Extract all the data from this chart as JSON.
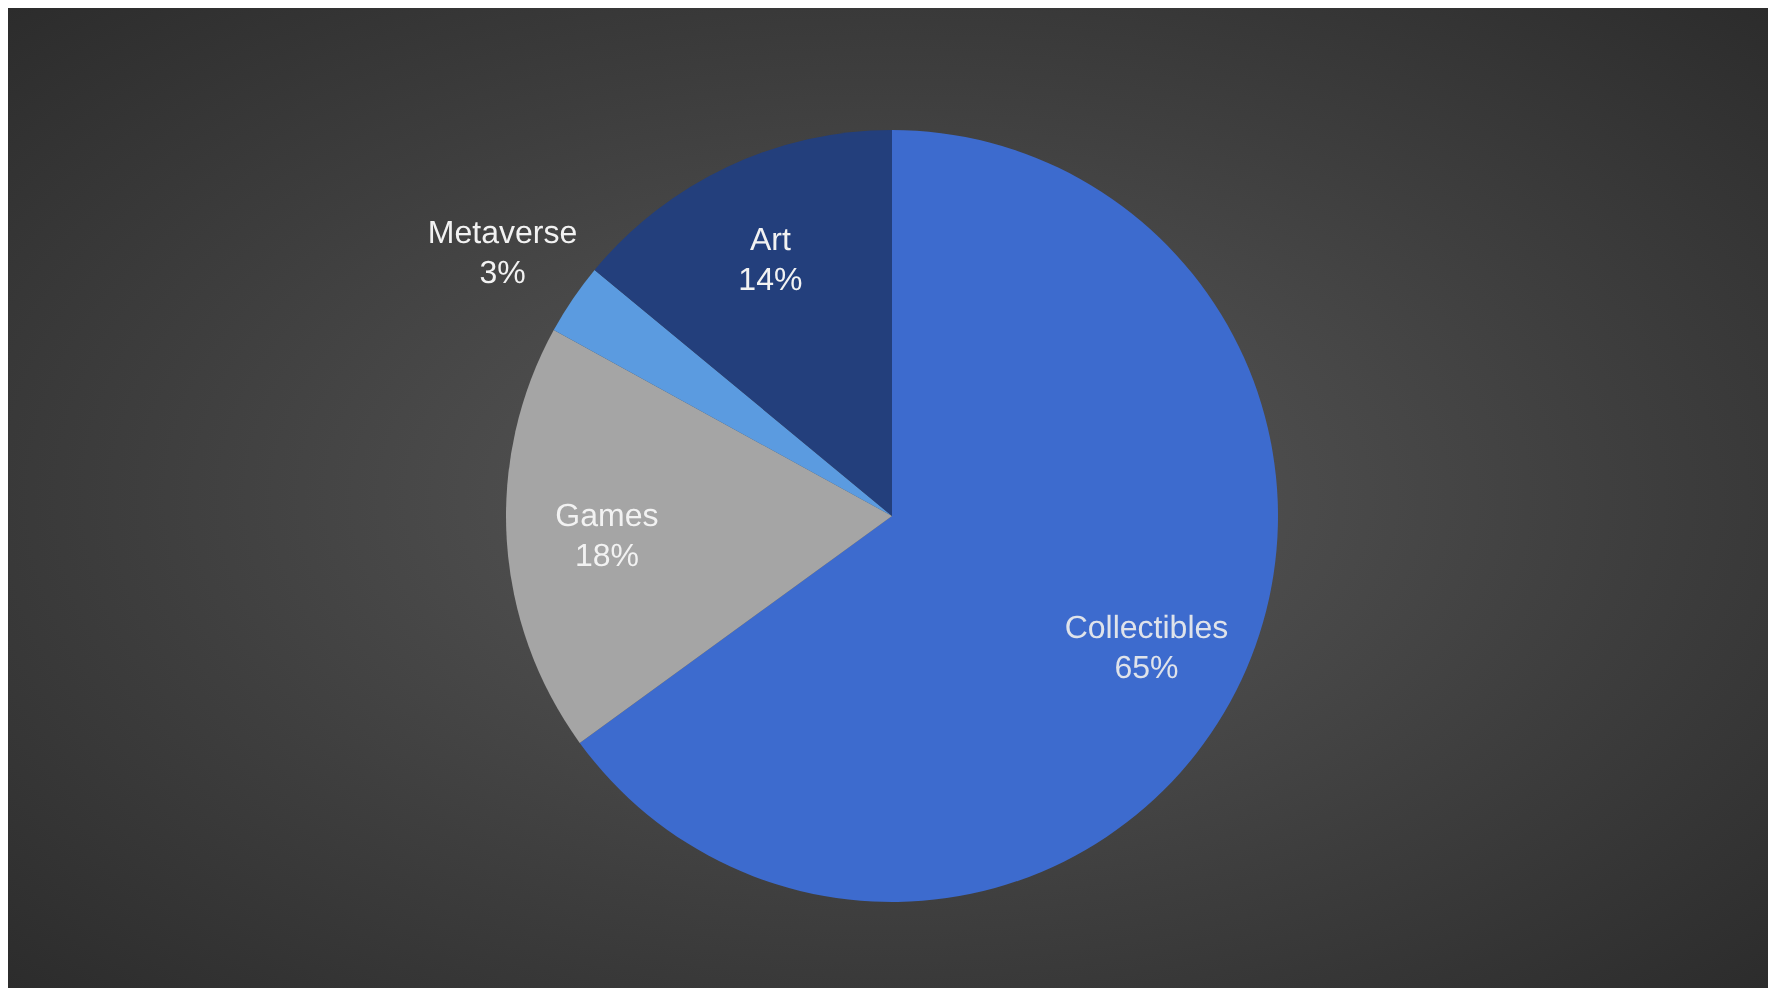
{
  "chart_data": {
    "type": "pie",
    "categories": [
      "Collectibles",
      "Games",
      "Metaverse",
      "Art"
    ],
    "values": [
      65,
      18,
      3,
      14
    ],
    "value_labels": [
      "65%",
      "18%",
      "3%",
      "14%"
    ],
    "colors": [
      "#3d6bce",
      "#a5a5a5",
      "#5b9be0",
      "#233f7c"
    ],
    "legend": false
  }
}
